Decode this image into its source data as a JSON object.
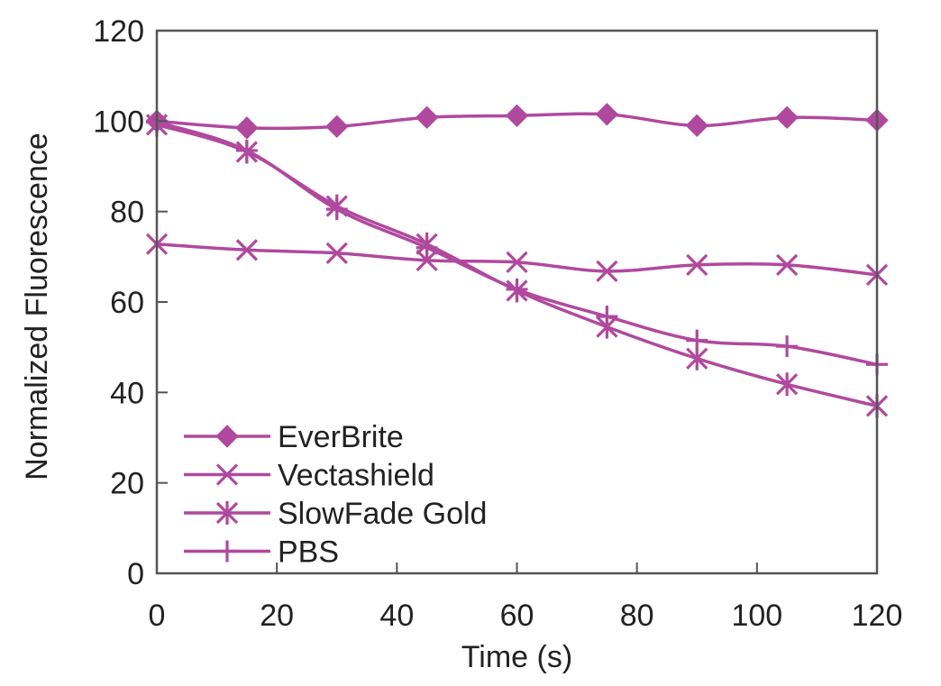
{
  "chart_data": {
    "type": "line",
    "xlabel": "Time (s)",
    "ylabel": "Normalized Fluorescence",
    "xlim": [
      0,
      120
    ],
    "ylim": [
      0,
      120
    ],
    "xticks": [
      0,
      20,
      40,
      60,
      80,
      100,
      120
    ],
    "yticks": [
      0,
      20,
      40,
      60,
      80,
      100,
      120
    ],
    "grid": false,
    "legend_position": "bottom-left",
    "line_color": "#b0499e",
    "x": [
      0,
      15,
      30,
      45,
      60,
      75,
      90,
      105,
      120
    ],
    "series": [
      {
        "name": "EverBrite",
        "marker": "diamond",
        "values": [
          100,
          98.5,
          98.8,
          100.8,
          101.2,
          101.5,
          99,
          100.8,
          100.2
        ]
      },
      {
        "name": "Vectashield",
        "marker": "x",
        "values": [
          72.8,
          71.5,
          70.8,
          69.2,
          68.8,
          66.8,
          68.2,
          68.2,
          66
        ]
      },
      {
        "name": "SlowFade Gold",
        "marker": "asterisk",
        "values": [
          99.2,
          93.2,
          81.2,
          72.8,
          62.5,
          54.5,
          47.5,
          41.8,
          37
        ]
      },
      {
        "name": "PBS",
        "marker": "plus",
        "values": [
          99.8,
          93.5,
          80.5,
          72,
          62.8,
          56.8,
          51.5,
          50.2,
          46.2
        ]
      }
    ]
  }
}
